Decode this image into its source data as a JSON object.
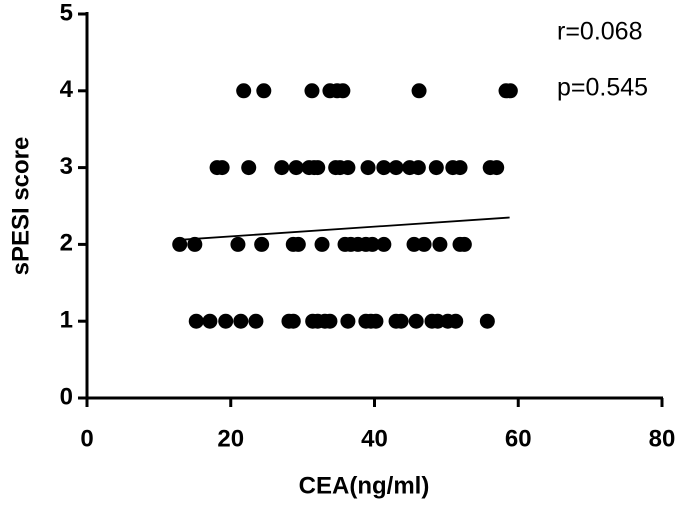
{
  "chart_data": {
    "type": "scatter",
    "x_label": "CEA(ng/ml)",
    "y_label": "sPESI score",
    "annotations": [
      "r=0.068",
      "p=0.545"
    ],
    "xlim": [
      0,
      80
    ],
    "xticks": [
      0,
      20,
      40,
      60,
      80
    ],
    "ylim": [
      0,
      5
    ],
    "yticks": [
      0,
      1,
      2,
      3,
      4,
      5
    ],
    "series": [
      {
        "color": "#000000",
        "x": [
          21.8,
          24.6,
          31.3,
          33.8,
          34.8,
          35.6,
          46.2,
          58.3,
          58.9,
          18.1,
          18.8,
          22.5,
          27.1,
          29.1,
          30.9,
          31.6,
          32.1,
          34.6,
          35.2,
          36.3,
          39.1,
          41.3,
          43.0,
          44.9,
          46.1,
          48.6,
          50.9,
          51.9,
          56.1,
          57.0,
          12.9,
          15.0,
          21.0,
          24.3,
          28.7,
          29.4,
          32.7,
          35.9,
          36.7,
          37.7,
          38.8,
          39.7,
          41.3,
          45.5,
          46.9,
          49.1,
          51.9,
          52.5,
          15.2,
          17.1,
          19.3,
          21.4,
          23.5,
          28.1,
          28.7,
          31.4,
          32.1,
          33.1,
          33.8,
          36.3,
          38.8,
          39.5,
          40.2,
          43.0,
          43.7,
          45.8,
          48.0,
          48.8,
          50.2,
          51.3,
          55.7
        ],
        "y": [
          4,
          4,
          4,
          4,
          4,
          4,
          4,
          4,
          4,
          3,
          3,
          3,
          3,
          3,
          3,
          3,
          3,
          3,
          3,
          3,
          3,
          3,
          3,
          3,
          3,
          3,
          3,
          3,
          3,
          3,
          2,
          2,
          2,
          2,
          2,
          2,
          2,
          2,
          2,
          2,
          2,
          2,
          2,
          2,
          2,
          2,
          2,
          2,
          1,
          1,
          1,
          1,
          1,
          1,
          1,
          1,
          1,
          1,
          1,
          1,
          1,
          1,
          1,
          1,
          1,
          1,
          1,
          1,
          1,
          1,
          1
        ]
      }
    ],
    "fit_line": {
      "color": "#000000",
      "x": [
        13,
        58.8
      ],
      "y": [
        2.06,
        2.35
      ]
    }
  }
}
